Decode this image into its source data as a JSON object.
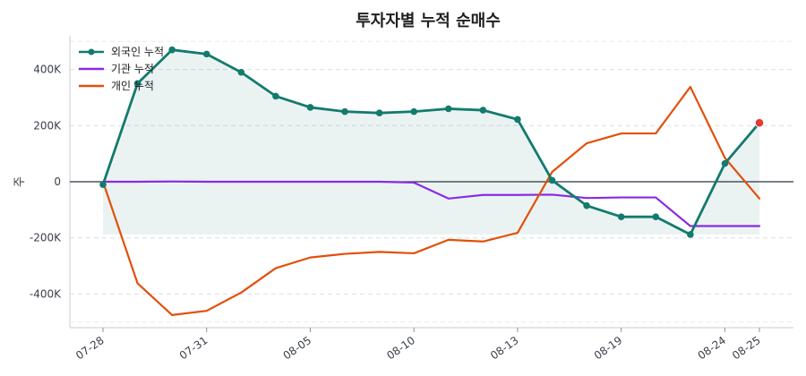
{
  "chart_data": {
    "type": "line",
    "title": "투자자별 누적 순매수",
    "ylabel": "주",
    "xlabel": "",
    "ylim": [
      -520000,
      520000
    ],
    "yticks": [
      -400000,
      -200000,
      0,
      200000,
      400000
    ],
    "ytick_labels": [
      "-400K",
      "-200K",
      "0",
      "200K",
      "400K"
    ],
    "x": [
      "07-28",
      "07-29",
      "07-30",
      "07-31",
      "08-01",
      "08-04",
      "08-05",
      "08-06",
      "08-07",
      "08-10",
      "08-11",
      "08-12",
      "08-13",
      "08-14",
      "08-15",
      "08-19",
      "08-20",
      "08-21",
      "08-24",
      "08-25"
    ],
    "xtick_labels": [
      "07-28",
      "07-31",
      "08-05",
      "08-10",
      "08-13",
      "08-19",
      "08-24",
      "08-25"
    ],
    "xtick_indices": [
      0,
      3,
      6,
      9,
      12,
      15,
      18,
      19
    ],
    "grid": "horizontal dashed",
    "legend_position": "top-left",
    "series": [
      {
        "name": "외국인 누적",
        "color": "#137a6e",
        "markers": true,
        "filled": true,
        "values": [
          -10000,
          350000,
          470000,
          455000,
          390000,
          305000,
          265000,
          250000,
          245000,
          250000,
          260000,
          255000,
          222000,
          5000,
          -85000,
          -125000,
          -125000,
          -188000,
          65000,
          210000
        ]
      },
      {
        "name": "기관 누적",
        "color": "#8a2be2",
        "markers": false,
        "filled": false,
        "values": [
          0,
          0,
          1000,
          0,
          0,
          0,
          0,
          0,
          0,
          -3000,
          -60000,
          -47000,
          -47000,
          -46000,
          -58000,
          -56000,
          -56000,
          -158000,
          -158000,
          -158000
        ]
      },
      {
        "name": "개인 누적",
        "color": "#e2500a",
        "markers": false,
        "filled": false,
        "values": [
          0,
          -362000,
          -475000,
          -460000,
          -395000,
          -308000,
          -270000,
          -257000,
          -250000,
          -255000,
          -207000,
          -213000,
          -182000,
          35000,
          137000,
          172000,
          172000,
          338000,
          85000,
          -60000
        ]
      }
    ],
    "last_point_highlight_color": "#e53935"
  }
}
